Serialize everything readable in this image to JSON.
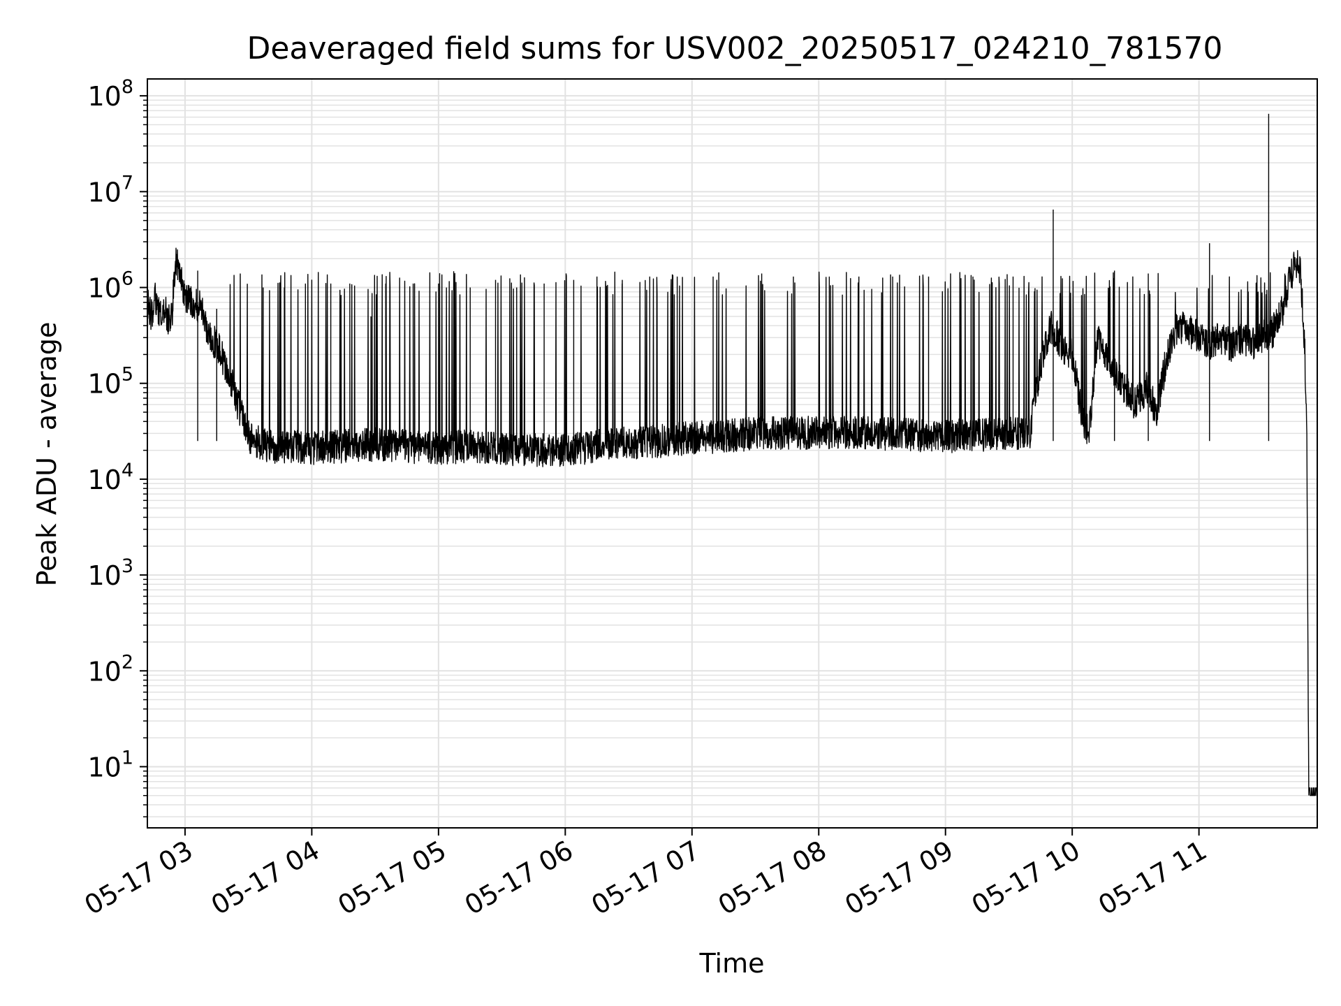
{
  "chart_data": {
    "type": "line",
    "title": "Deaveraged field sums for USV002_20250517_024210_781570",
    "xlabel": "Time",
    "ylabel": "Peak ADU - average",
    "yscale": "log",
    "ylim": [
      2.3,
      150000000
    ],
    "xlim": [
      "2025-05-17T02:42:10",
      "2025-05-17T11:56:00"
    ],
    "grid": true,
    "grid_minor": true,
    "line_color": "#000000",
    "x_ticks": [
      {
        "t": "2025-05-17T03:00",
        "label": "05-17 03"
      },
      {
        "t": "2025-05-17T04:00",
        "label": "05-17 04"
      },
      {
        "t": "2025-05-17T05:00",
        "label": "05-17 05"
      },
      {
        "t": "2025-05-17T06:00",
        "label": "05-17 06"
      },
      {
        "t": "2025-05-17T07:00",
        "label": "05-17 07"
      },
      {
        "t": "2025-05-17T08:00",
        "label": "05-17 08"
      },
      {
        "t": "2025-05-17T09:00",
        "label": "05-17 09"
      },
      {
        "t": "2025-05-17T10:00",
        "label": "05-17 10"
      },
      {
        "t": "2025-05-17T11:00",
        "label": "05-17 11"
      }
    ],
    "y_ticks": [
      {
        "value": 10,
        "base": "10",
        "exp": "1"
      },
      {
        "value": 100,
        "base": "10",
        "exp": "2"
      },
      {
        "value": 1000,
        "base": "10",
        "exp": "3"
      },
      {
        "value": 10000,
        "base": "10",
        "exp": "4"
      },
      {
        "value": 100000,
        "base": "10",
        "exp": "5"
      },
      {
        "value": 1000000,
        "base": "10",
        "exp": "6"
      },
      {
        "value": 10000000,
        "base": "10",
        "exp": "7"
      },
      {
        "value": 100000000,
        "base": "10",
        "exp": "8"
      }
    ],
    "series": [
      {
        "points": [
          [
            "2025-05-17T02:42",
            700000
          ],
          [
            "2025-05-17T02:44",
            520000
          ],
          [
            "2025-05-17T02:46",
            800000
          ],
          [
            "2025-05-17T02:48",
            500000
          ],
          [
            "2025-05-17T02:50",
            600000
          ],
          [
            "2025-05-17T02:52",
            480000
          ],
          [
            "2025-05-17T02:54",
            560000
          ],
          [
            "2025-05-17T02:55",
            1500000
          ],
          [
            "2025-05-17T02:56",
            2000000
          ],
          [
            "2025-05-17T02:58",
            1300000
          ],
          [
            "2025-05-17T03:00",
            800000
          ],
          [
            "2025-05-17T03:02",
            700000
          ],
          [
            "2025-05-17T03:05",
            650000
          ],
          [
            "2025-05-17T03:08",
            600000
          ],
          [
            "2025-05-17T03:10",
            400000
          ],
          [
            "2025-05-17T03:12",
            300000
          ],
          [
            "2025-05-17T03:15",
            250000
          ],
          [
            "2025-05-17T03:18",
            180000
          ],
          [
            "2025-05-17T03:20",
            130000
          ],
          [
            "2025-05-17T03:23",
            90000
          ],
          [
            "2025-05-17T03:25",
            60000
          ],
          [
            "2025-05-17T03:28",
            40000
          ],
          [
            "2025-05-17T03:30",
            28000
          ],
          [
            "2025-05-17T03:35",
            24000
          ],
          [
            "2025-05-17T03:40",
            22000
          ],
          [
            "2025-05-17T03:45",
            21000
          ],
          [
            "2025-05-17T03:50",
            22000
          ],
          [
            "2025-05-17T04:00",
            21000
          ],
          [
            "2025-05-17T04:15",
            22000
          ],
          [
            "2025-05-17T04:30",
            23000
          ],
          [
            "2025-05-17T04:45",
            22000
          ],
          [
            "2025-05-17T05:00",
            21000
          ],
          [
            "2025-05-17T05:15",
            22000
          ],
          [
            "2025-05-17T05:30",
            21000
          ],
          [
            "2025-05-17T05:45",
            20000
          ],
          [
            "2025-05-17T06:00",
            20000
          ],
          [
            "2025-05-17T06:15",
            22000
          ],
          [
            "2025-05-17T06:30",
            24000
          ],
          [
            "2025-05-17T06:45",
            25000
          ],
          [
            "2025-05-17T07:00",
            27000
          ],
          [
            "2025-05-17T07:15",
            28000
          ],
          [
            "2025-05-17T07:30",
            30000
          ],
          [
            "2025-05-17T07:45",
            30000
          ],
          [
            "2025-05-17T08:00",
            31000
          ],
          [
            "2025-05-17T08:15",
            31000
          ],
          [
            "2025-05-17T08:30",
            30000
          ],
          [
            "2025-05-17T08:45",
            29000
          ],
          [
            "2025-05-17T09:00",
            28000
          ],
          [
            "2025-05-17T09:15",
            29000
          ],
          [
            "2025-05-17T09:30",
            30000
          ],
          [
            "2025-05-17T09:40",
            30000
          ],
          [
            "2025-05-17T09:45",
            150000
          ],
          [
            "2025-05-17T09:50",
            400000
          ],
          [
            "2025-05-17T09:55",
            250000
          ],
          [
            "2025-05-17T10:00",
            200000
          ],
          [
            "2025-05-17T10:05",
            40000
          ],
          [
            "2025-05-17T10:08",
            30000
          ],
          [
            "2025-05-17T10:12",
            300000
          ],
          [
            "2025-05-17T10:18",
            150000
          ],
          [
            "2025-05-17T10:25",
            90000
          ],
          [
            "2025-05-17T10:30",
            60000
          ],
          [
            "2025-05-17T10:35",
            90000
          ],
          [
            "2025-05-17T10:40",
            50000
          ],
          [
            "2025-05-17T10:45",
            200000
          ],
          [
            "2025-05-17T10:50",
            400000
          ],
          [
            "2025-05-17T10:55",
            350000
          ],
          [
            "2025-05-17T11:00",
            300000
          ],
          [
            "2025-05-17T11:05",
            250000
          ],
          [
            "2025-05-17T11:10",
            300000
          ],
          [
            "2025-05-17T11:15",
            250000
          ],
          [
            "2025-05-17T11:20",
            300000
          ],
          [
            "2025-05-17T11:25",
            250000
          ],
          [
            "2025-05-17T11:30",
            300000
          ],
          [
            "2025-05-17T11:35",
            350000
          ],
          [
            "2025-05-17T11:40",
            600000
          ],
          [
            "2025-05-17T11:42",
            1000000
          ],
          [
            "2025-05-17T11:44",
            1400000
          ],
          [
            "2025-05-17T11:46",
            1800000
          ],
          [
            "2025-05-17T11:48",
            1500000
          ],
          [
            "2025-05-17T11:50",
            250000
          ],
          [
            "2025-05-17T11:51",
            40000
          ],
          [
            "2025-05-17T11:52",
            5
          ],
          [
            "2025-05-17T11:56",
            5
          ]
        ],
        "spikes": [
          [
            "2025-05-17T03:06",
            1500000
          ],
          [
            "2025-05-17T03:15",
            600000
          ],
          [
            "2025-05-17T03:37",
            1000000
          ],
          [
            "2025-05-17T03:47",
            1000000
          ],
          [
            "2025-05-17T03:57",
            1100000
          ],
          [
            "2025-05-17T04:09",
            1100000
          ],
          [
            "2025-05-17T04:18",
            1100000
          ],
          [
            "2025-05-17T04:28",
            500000
          ],
          [
            "2025-05-17T04:35",
            1100000
          ],
          [
            "2025-05-17T04:48",
            1100000
          ],
          [
            "2025-05-17T05:00",
            1100000
          ],
          [
            "2025-05-17T05:15",
            1000000
          ],
          [
            "2025-05-17T05:27",
            1200000
          ],
          [
            "2025-05-17T05:37",
            1000000
          ],
          [
            "2025-05-17T05:50",
            1100000
          ],
          [
            "2025-05-17T06:04",
            1200000
          ],
          [
            "2025-05-17T06:15",
            1300000
          ],
          [
            "2025-05-17T06:27",
            1200000
          ],
          [
            "2025-05-17T06:40",
            1300000
          ],
          [
            "2025-05-17T06:53",
            1300000
          ],
          [
            "2025-05-17T07:10",
            1300000
          ],
          [
            "2025-05-17T07:33",
            1400000
          ],
          [
            "2025-05-17T07:48",
            1300000
          ],
          [
            "2025-05-17T08:05",
            1300000
          ],
          [
            "2025-05-17T08:19",
            1300000
          ],
          [
            "2025-05-17T08:35",
            1300000
          ],
          [
            "2025-05-17T08:52",
            1300000
          ],
          [
            "2025-05-17T09:13",
            1300000
          ],
          [
            "2025-05-17T09:32",
            1300000
          ],
          [
            "2025-05-17T09:51",
            6500000
          ],
          [
            "2025-05-17T10:20",
            1500000
          ],
          [
            "2025-05-17T10:36",
            1400000
          ],
          [
            "2025-05-17T11:05",
            2900000
          ],
          [
            "2025-05-17T11:33",
            65000000
          ]
        ]
      }
    ]
  }
}
